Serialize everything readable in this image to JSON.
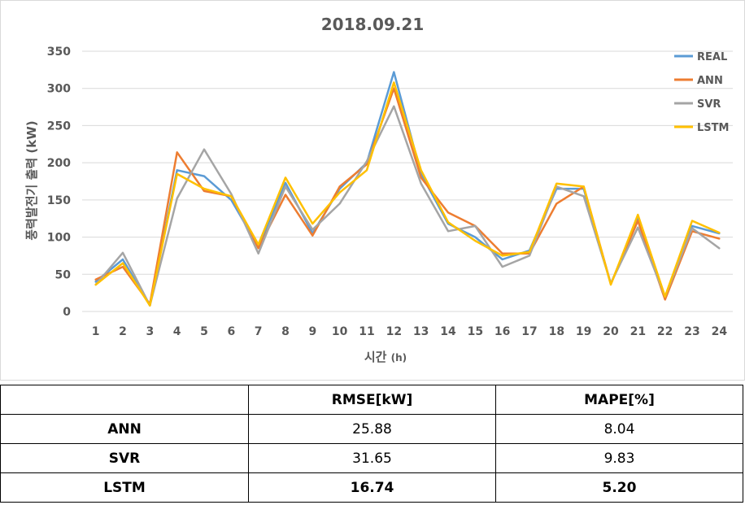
{
  "chart_data": {
    "type": "line",
    "title": "2018.09.21",
    "xlabel": "시간",
    "xlabel_unit": "(h)",
    "ylabel": "풍력발전기 출력 (kW)",
    "ylim": [
      0,
      350
    ],
    "yticks": [
      0,
      50,
      100,
      150,
      200,
      250,
      300,
      350
    ],
    "grid": true,
    "legend_position": "top-right",
    "categories": [
      "1",
      "2",
      "3",
      "4",
      "5",
      "6",
      "7",
      "8",
      "9",
      "10",
      "11",
      "12",
      "13",
      "14",
      "15",
      "16",
      "17",
      "18",
      "19",
      "20",
      "21",
      "22",
      "23",
      "24"
    ],
    "series": [
      {
        "name": "REAL",
        "color": "#5B9BD5",
        "values": [
          40,
          70,
          8,
          190,
          182,
          150,
          87,
          173,
          105,
          165,
          200,
          322,
          185,
          118,
          100,
          70,
          82,
          165,
          165,
          37,
          125,
          18,
          115,
          105
        ]
      },
      {
        "name": "ANN",
        "color": "#ED7D31",
        "values": [
          43,
          60,
          10,
          214,
          162,
          155,
          85,
          157,
          102,
          168,
          198,
          300,
          180,
          133,
          115,
          78,
          78,
          145,
          168,
          37,
          122,
          16,
          108,
          98
        ]
      },
      {
        "name": "SVR",
        "color": "#A5A5A5",
        "values": [
          36,
          79,
          8,
          152,
          218,
          158,
          78,
          168,
          110,
          145,
          202,
          276,
          172,
          108,
          115,
          60,
          75,
          168,
          155,
          38,
          113,
          20,
          112,
          85
        ]
      },
      {
        "name": "LSTM",
        "color": "#FFC000",
        "values": [
          36,
          65,
          8,
          185,
          165,
          155,
          90,
          180,
          118,
          160,
          190,
          308,
          190,
          120,
          95,
          75,
          80,
          172,
          168,
          36,
          130,
          20,
          122,
          106
        ]
      }
    ]
  },
  "table": {
    "headers": [
      "",
      "RMSE[kW]",
      "MAPE[%]"
    ],
    "rows": [
      {
        "label": "ANN",
        "rmse": "25.88",
        "mape": "8.04"
      },
      {
        "label": "SVR",
        "rmse": "31.65",
        "mape": "9.83"
      },
      {
        "label": "LSTM",
        "rmse": "16.74",
        "mape": "5.20"
      }
    ]
  }
}
